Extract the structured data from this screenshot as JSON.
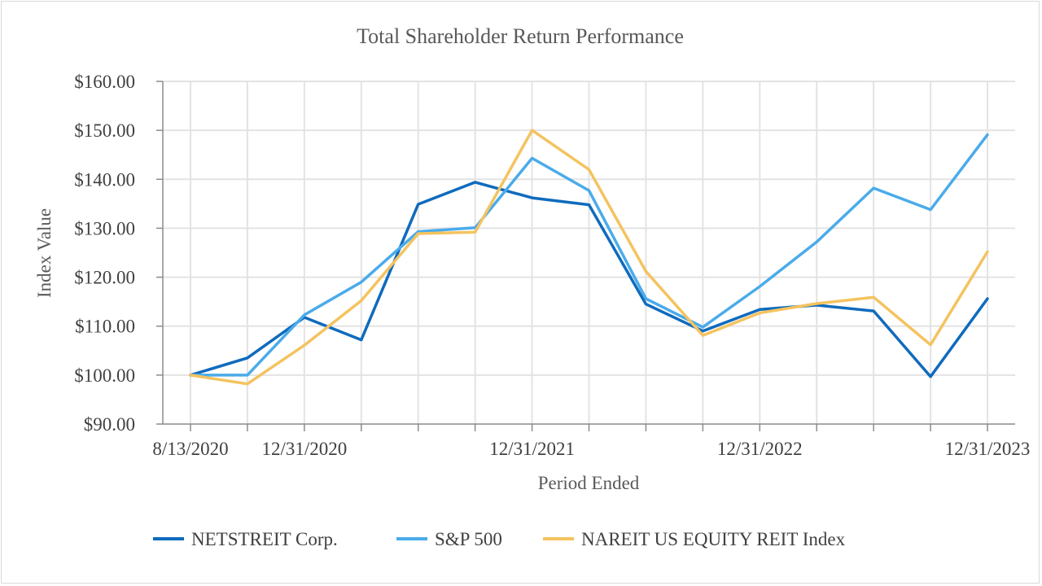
{
  "chart_data": {
    "type": "line",
    "title": "Total Shareholder Return Performance",
    "xlabel": "Period Ended",
    "ylabel": "Index Value",
    "ylim": [
      90,
      160
    ],
    "y_ticks": [
      "$90.00",
      "$100.00",
      "$110.00",
      "$120.00",
      "$130.00",
      "$140.00",
      "$150.00",
      "$160.00"
    ],
    "y_tick_values": [
      90,
      100,
      110,
      120,
      130,
      140,
      150,
      160
    ],
    "x_tick_labels": [
      "8/13/2020",
      "",
      "12/31/2020",
      "",
      "",
      "",
      "12/31/2021",
      "",
      "",
      "",
      "12/31/2022",
      "",
      "",
      "",
      "12/31/2023"
    ],
    "grid": true,
    "legend_position": "bottom",
    "series": [
      {
        "name": "NETSTREIT Corp.",
        "color": "#0f6bbd",
        "values": [
          100.0,
          103.5,
          111.8,
          107.2,
          134.9,
          139.4,
          136.2,
          134.8,
          114.5,
          109.0,
          113.4,
          114.3,
          113.1,
          99.7,
          115.6
        ]
      },
      {
        "name": "S&P 500",
        "color": "#4aabea",
        "values": [
          100.0,
          100.0,
          112.3,
          119.0,
          129.3,
          130.1,
          144.3,
          137.7,
          115.6,
          109.8,
          118.1,
          127.2,
          138.2,
          133.8,
          149.1
        ]
      },
      {
        "name": "NAREIT US EQUITY REIT Index",
        "color": "#f4c35f",
        "values": [
          100.0,
          98.2,
          106.1,
          115.2,
          128.9,
          129.2,
          150.0,
          142.0,
          121.2,
          108.1,
          112.7,
          114.6,
          115.9,
          106.2,
          125.2
        ]
      }
    ]
  }
}
